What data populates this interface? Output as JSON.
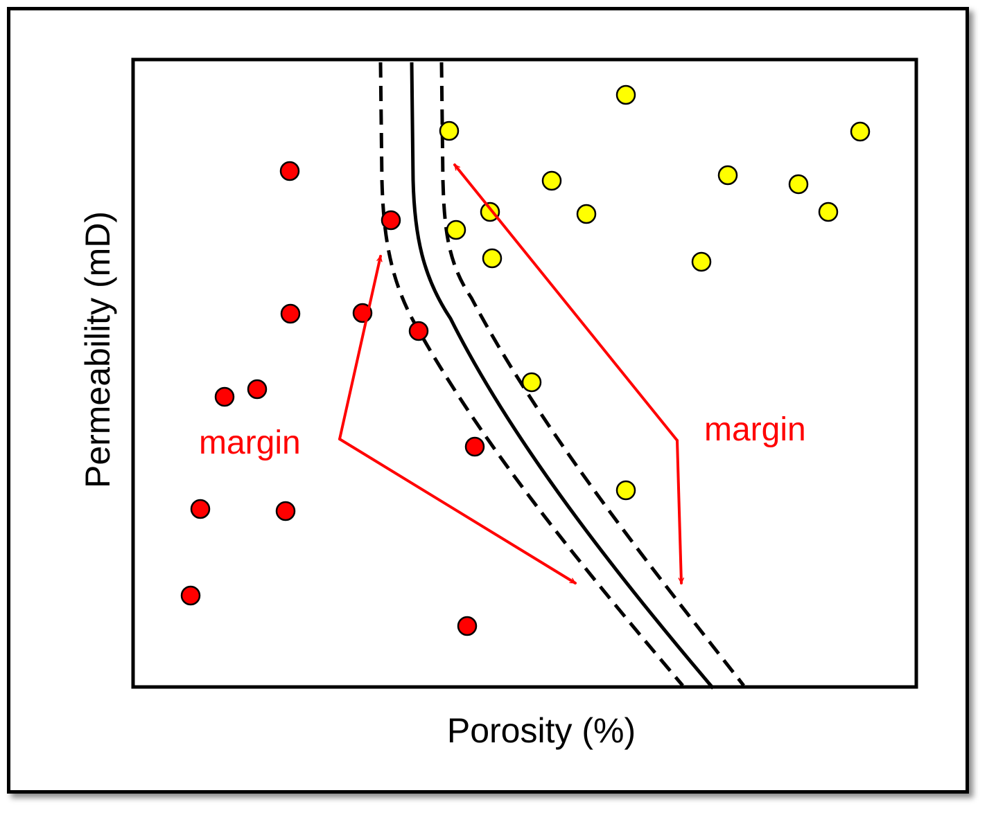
{
  "xlabel": "Porosity (%)",
  "ylabel": "Permeability (mD)",
  "annotations": {
    "left": "margin",
    "right": "margin"
  },
  "colors": {
    "class_a": "#ff0000",
    "class_b": "#ffff00",
    "annotation": "#ff0000",
    "boundary": "#000000"
  },
  "legend": {
    "boundary": "solid black decision boundary",
    "margins": "dashed black margin lines"
  }
}
